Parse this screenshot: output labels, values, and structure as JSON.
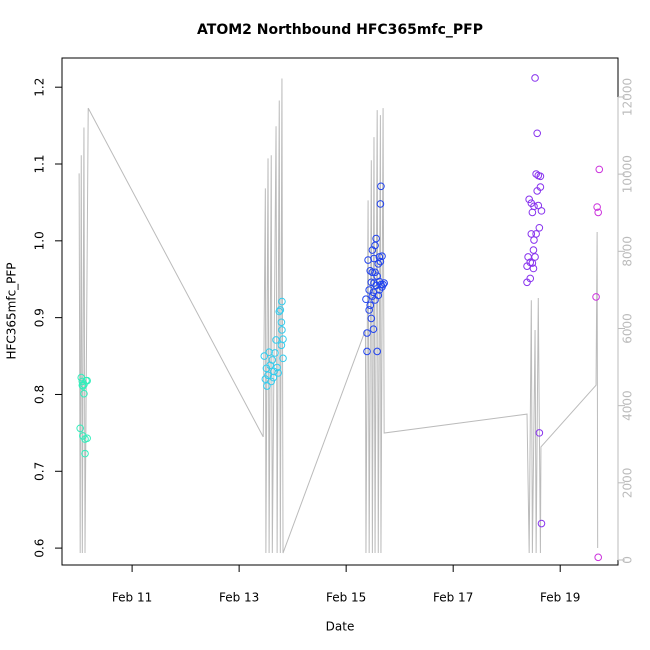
{
  "chart_data": {
    "type": "scatter",
    "title": "ATOM2 Northbound HFC365mfc_PFP",
    "xlabel": "Date",
    "ylabel": "HFC365mfc_PFP",
    "xlim": [
      9.69,
      20.08
    ],
    "ylim": [
      0.578,
      1.238
    ],
    "y2lim": [
      -130,
      13010
    ],
    "xticks": [
      {
        "value": 11,
        "label": "Feb 11"
      },
      {
        "value": 13,
        "label": "Feb 13"
      },
      {
        "value": 15,
        "label": "Feb 15"
      },
      {
        "value": 17,
        "label": "Feb 17"
      },
      {
        "value": 19,
        "label": "Feb 19"
      }
    ],
    "yticks": [
      0.6,
      0.7,
      0.8,
      0.9,
      {
        "value": 1,
        "label": "1.0"
      },
      1.1,
      1.2
    ],
    "y2ticks": [
      0,
      2000,
      4000,
      6000,
      8000,
      10000,
      12000
    ],
    "y2color": "#bbbbbb",
    "series": [
      {
        "type": "scatter",
        "color": "#33eebb",
        "x": [
          10.03,
          10.05,
          10.07,
          10.07,
          10.08,
          10.08,
          10.1,
          10.12,
          10.12,
          10.1,
          10.14,
          10.16,
          10.16
        ],
        "values": [
          0.756,
          0.822,
          0.817,
          0.812,
          0.811,
          0.746,
          0.813,
          0.742,
          0.723,
          0.801,
          0.818,
          0.743,
          0.818
        ]
      },
      {
        "type": "scatter",
        "color": "#33ccee",
        "x": [
          13.47,
          13.49,
          13.51,
          13.52,
          13.54,
          13.56,
          13.58,
          13.6,
          13.62,
          13.64,
          13.65,
          13.67,
          13.69,
          13.71,
          13.73,
          13.75,
          13.77,
          13.79,
          13.8,
          13.8,
          13.82,
          13.82,
          13.79
        ],
        "values": [
          0.85,
          0.82,
          0.834,
          0.811,
          0.825,
          0.855,
          0.838,
          0.817,
          0.845,
          0.822,
          0.83,
          0.854,
          0.871,
          0.835,
          0.828,
          0.908,
          0.91,
          0.894,
          0.921,
          0.884,
          0.872,
          0.847,
          0.864
        ]
      },
      {
        "type": "scatter",
        "color": "#2244ee",
        "x": [
          15.37,
          15.39,
          15.39,
          15.41,
          15.43,
          15.43,
          15.45,
          15.45,
          15.47,
          15.47,
          15.49,
          15.49,
          15.51,
          15.51,
          15.52,
          15.52,
          15.54,
          15.54,
          15.56,
          15.56,
          15.58,
          15.58,
          15.6,
          15.6,
          15.62,
          15.62,
          15.64,
          15.64,
          15.65,
          15.65,
          15.67,
          15.67,
          15.69,
          15.71,
          15.62,
          15.54,
          15.49
        ],
        "values": [
          0.924,
          0.88,
          0.856,
          0.975,
          0.936,
          0.91,
          0.961,
          0.916,
          0.946,
          0.899,
          0.988,
          0.928,
          0.933,
          0.885,
          0.977,
          0.945,
          0.994,
          0.923,
          1.003,
          0.942,
          0.954,
          0.856,
          0.97,
          0.929,
          0.979,
          0.947,
          1.048,
          0.973,
          1.071,
          0.943,
          0.98,
          0.94,
          0.943,
          0.945,
          0.936,
          0.959,
          0.959
        ]
      },
      {
        "type": "scatter",
        "color": "#8833ee",
        "x": [
          18.38,
          18.38,
          18.4,
          18.42,
          18.44,
          18.44,
          18.46,
          18.46,
          18.48,
          18.48,
          18.5,
          18.5,
          18.51,
          18.51,
          18.53,
          18.53,
          18.55,
          18.55,
          18.57,
          18.57,
          18.59,
          18.59,
          18.61,
          18.61,
          18.63,
          18.63,
          18.65,
          18.65
        ],
        "values": [
          0.946,
          0.967,
          0.979,
          1.054,
          0.951,
          0.972,
          1.009,
          1.049,
          1.037,
          0.971,
          0.988,
          0.964,
          1.045,
          1.001,
          1.212,
          0.979,
          1.087,
          1.009,
          1.14,
          1.065,
          1.085,
          1.046,
          0.75,
          1.017,
          1.084,
          1.07,
          0.632,
          1.039
        ]
      },
      {
        "type": "scatter",
        "color": "#cc33dd",
        "x": [
          19.67,
          19.69,
          19.71,
          19.71,
          19.73
        ],
        "values": [
          0.927,
          1.044,
          0.588,
          1.037,
          1.093
        ]
      },
      {
        "type": "line",
        "axis": "y2",
        "color": "#bbbbbb",
        "x": [
          10.01,
          10.03,
          10.05,
          10.07,
          10.1,
          10.12,
          10.18,
          13.45,
          13.49,
          13.5,
          13.54,
          13.56,
          13.6,
          13.62,
          13.69,
          13.71,
          13.75,
          13.77,
          13.8,
          13.82,
          15.36,
          15.37,
          15.41,
          15.43,
          15.47,
          15.49,
          15.52,
          15.54,
          15.58,
          15.6,
          15.64,
          15.65,
          15.69,
          15.71,
          18.38,
          18.42,
          18.46,
          18.48,
          18.53,
          18.55,
          18.59,
          18.63,
          18.64,
          19.67,
          19.69,
          19.7
        ],
        "values": [
          10020,
          180,
          10490,
          180,
          11210,
          180,
          11710,
          3190,
          9630,
          180,
          10410,
          180,
          10490,
          180,
          11240,
          180,
          11910,
          180,
          12480,
          180,
          5960,
          180,
          9320,
          180,
          10360,
          180,
          10960,
          180,
          11660,
          180,
          11530,
          180,
          11710,
          3290,
          3780,
          180,
          6730,
          180,
          5960,
          180,
          6790,
          180,
          2930,
          4530,
          8500,
          310
        ]
      }
    ]
  }
}
